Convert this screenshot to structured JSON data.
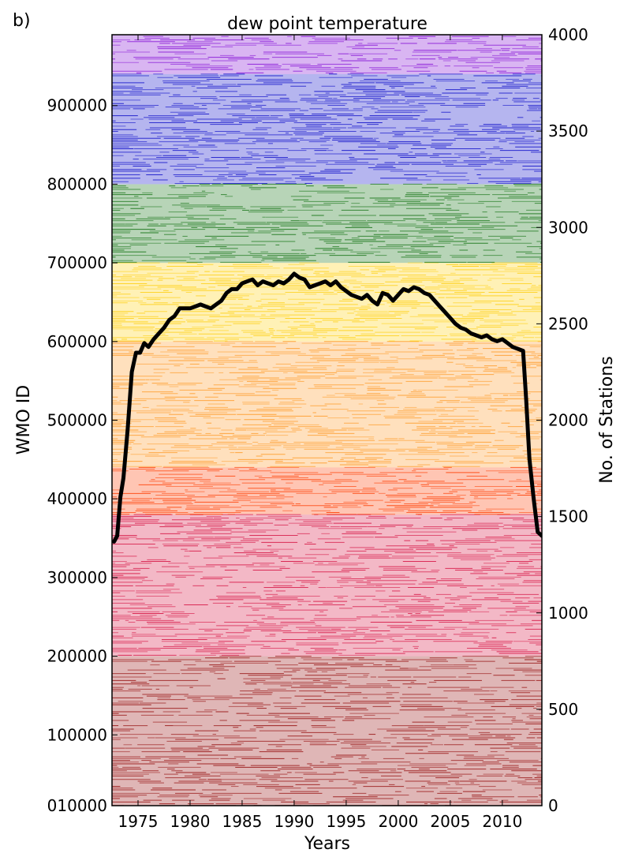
{
  "panel_label": "b)",
  "chart_data": {
    "type": "line",
    "title": "dew point temperature",
    "xlabel": "Years",
    "ylabel_left": "WMO ID",
    "ylabel_right": "No. of Stations",
    "xlim": [
      1972.5,
      2013.8
    ],
    "ylim_left": [
      10000,
      990000
    ],
    "ylim_right": [
      0,
      4000
    ],
    "x_ticks": [
      1975,
      1980,
      1985,
      1990,
      1995,
      2000,
      2005,
      2010
    ],
    "x_tick_labels": [
      "1975",
      "1980",
      "1985",
      "1990",
      "1995",
      "2000",
      "2005",
      "2010"
    ],
    "left_ticks": [
      {
        "value": 10000,
        "label": "010000"
      },
      {
        "value": 100000,
        "label": "100000"
      },
      {
        "value": 200000,
        "label": "200000"
      },
      {
        "value": 300000,
        "label": "300000"
      },
      {
        "value": 400000,
        "label": "400000"
      },
      {
        "value": 500000,
        "label": "500000"
      },
      {
        "value": 600000,
        "label": "600000"
      },
      {
        "value": 700000,
        "label": "700000"
      },
      {
        "value": 800000,
        "label": "800000"
      },
      {
        "value": 900000,
        "label": "900000"
      }
    ],
    "right_ticks": [
      0,
      500,
      1000,
      1500,
      2000,
      2500,
      3000,
      3500,
      4000
    ],
    "station_bands": [
      {
        "from": 10000,
        "to": 200000,
        "color": "#9b1b1b"
      },
      {
        "from": 200000,
        "to": 380000,
        "color": "#d9224f"
      },
      {
        "from": 380000,
        "to": 440000,
        "color": "#ff4a12"
      },
      {
        "from": 440000,
        "to": 600000,
        "color": "#ffa033"
      },
      {
        "from": 600000,
        "to": 700000,
        "color": "#ffd21c"
      },
      {
        "from": 700000,
        "to": 800000,
        "color": "#1f7a1f"
      },
      {
        "from": 800000,
        "to": 940000,
        "color": "#1a1acc"
      },
      {
        "from": 940000,
        "to": 990000,
        "color": "#8a1ad8"
      }
    ],
    "series": [
      {
        "color": "#000000",
        "x": [
          1972.7,
          1973.0,
          1973.3,
          1973.6,
          1974.0,
          1974.4,
          1974.8,
          1975.2,
          1975.6,
          1976.0,
          1976.5,
          1977.0,
          1977.5,
          1978.0,
          1978.5,
          1979.0,
          1979.5,
          1980.0,
          1980.5,
          1981.0,
          1981.5,
          1982.0,
          1982.5,
          1983.0,
          1983.5,
          1984.0,
          1984.5,
          1985.0,
          1985.5,
          1986.0,
          1986.5,
          1987.0,
          1987.5,
          1988.0,
          1988.5,
          1989.0,
          1989.5,
          1990.0,
          1990.5,
          1991.0,
          1991.5,
          1992.0,
          1992.5,
          1993.0,
          1993.5,
          1994.0,
          1994.5,
          1995.0,
          1995.5,
          1996.0,
          1996.5,
          1997.0,
          1997.5,
          1998.0,
          1998.5,
          1999.0,
          1999.5,
          2000.0,
          2000.5,
          2001.0,
          2001.5,
          2002.0,
          2002.5,
          2003.0,
          2003.5,
          2004.0,
          2004.5,
          2005.0,
          2005.5,
          2006.0,
          2006.5,
          2007.0,
          2007.5,
          2008.0,
          2008.5,
          2009.0,
          2009.5,
          2010.0,
          2010.5,
          2011.0,
          2011.5,
          2012.0,
          2012.3,
          2012.6,
          2013.0,
          2013.4,
          2013.8
        ],
        "y": [
          1370,
          1400,
          1600,
          1700,
          1950,
          2250,
          2350,
          2350,
          2400,
          2380,
          2420,
          2450,
          2480,
          2520,
          2540,
          2580,
          2580,
          2580,
          2590,
          2600,
          2590,
          2580,
          2600,
          2620,
          2660,
          2680,
          2680,
          2710,
          2720,
          2730,
          2700,
          2720,
          2710,
          2700,
          2720,
          2710,
          2730,
          2760,
          2740,
          2730,
          2690,
          2700,
          2710,
          2720,
          2700,
          2720,
          2690,
          2670,
          2650,
          2640,
          2630,
          2650,
          2620,
          2600,
          2660,
          2650,
          2620,
          2650,
          2680,
          2670,
          2690,
          2680,
          2660,
          2650,
          2620,
          2590,
          2560,
          2530,
          2500,
          2480,
          2470,
          2450,
          2440,
          2430,
          2440,
          2420,
          2410,
          2420,
          2400,
          2380,
          2370,
          2360,
          2100,
          1800,
          1600,
          1420,
          1400
        ]
      }
    ]
  }
}
